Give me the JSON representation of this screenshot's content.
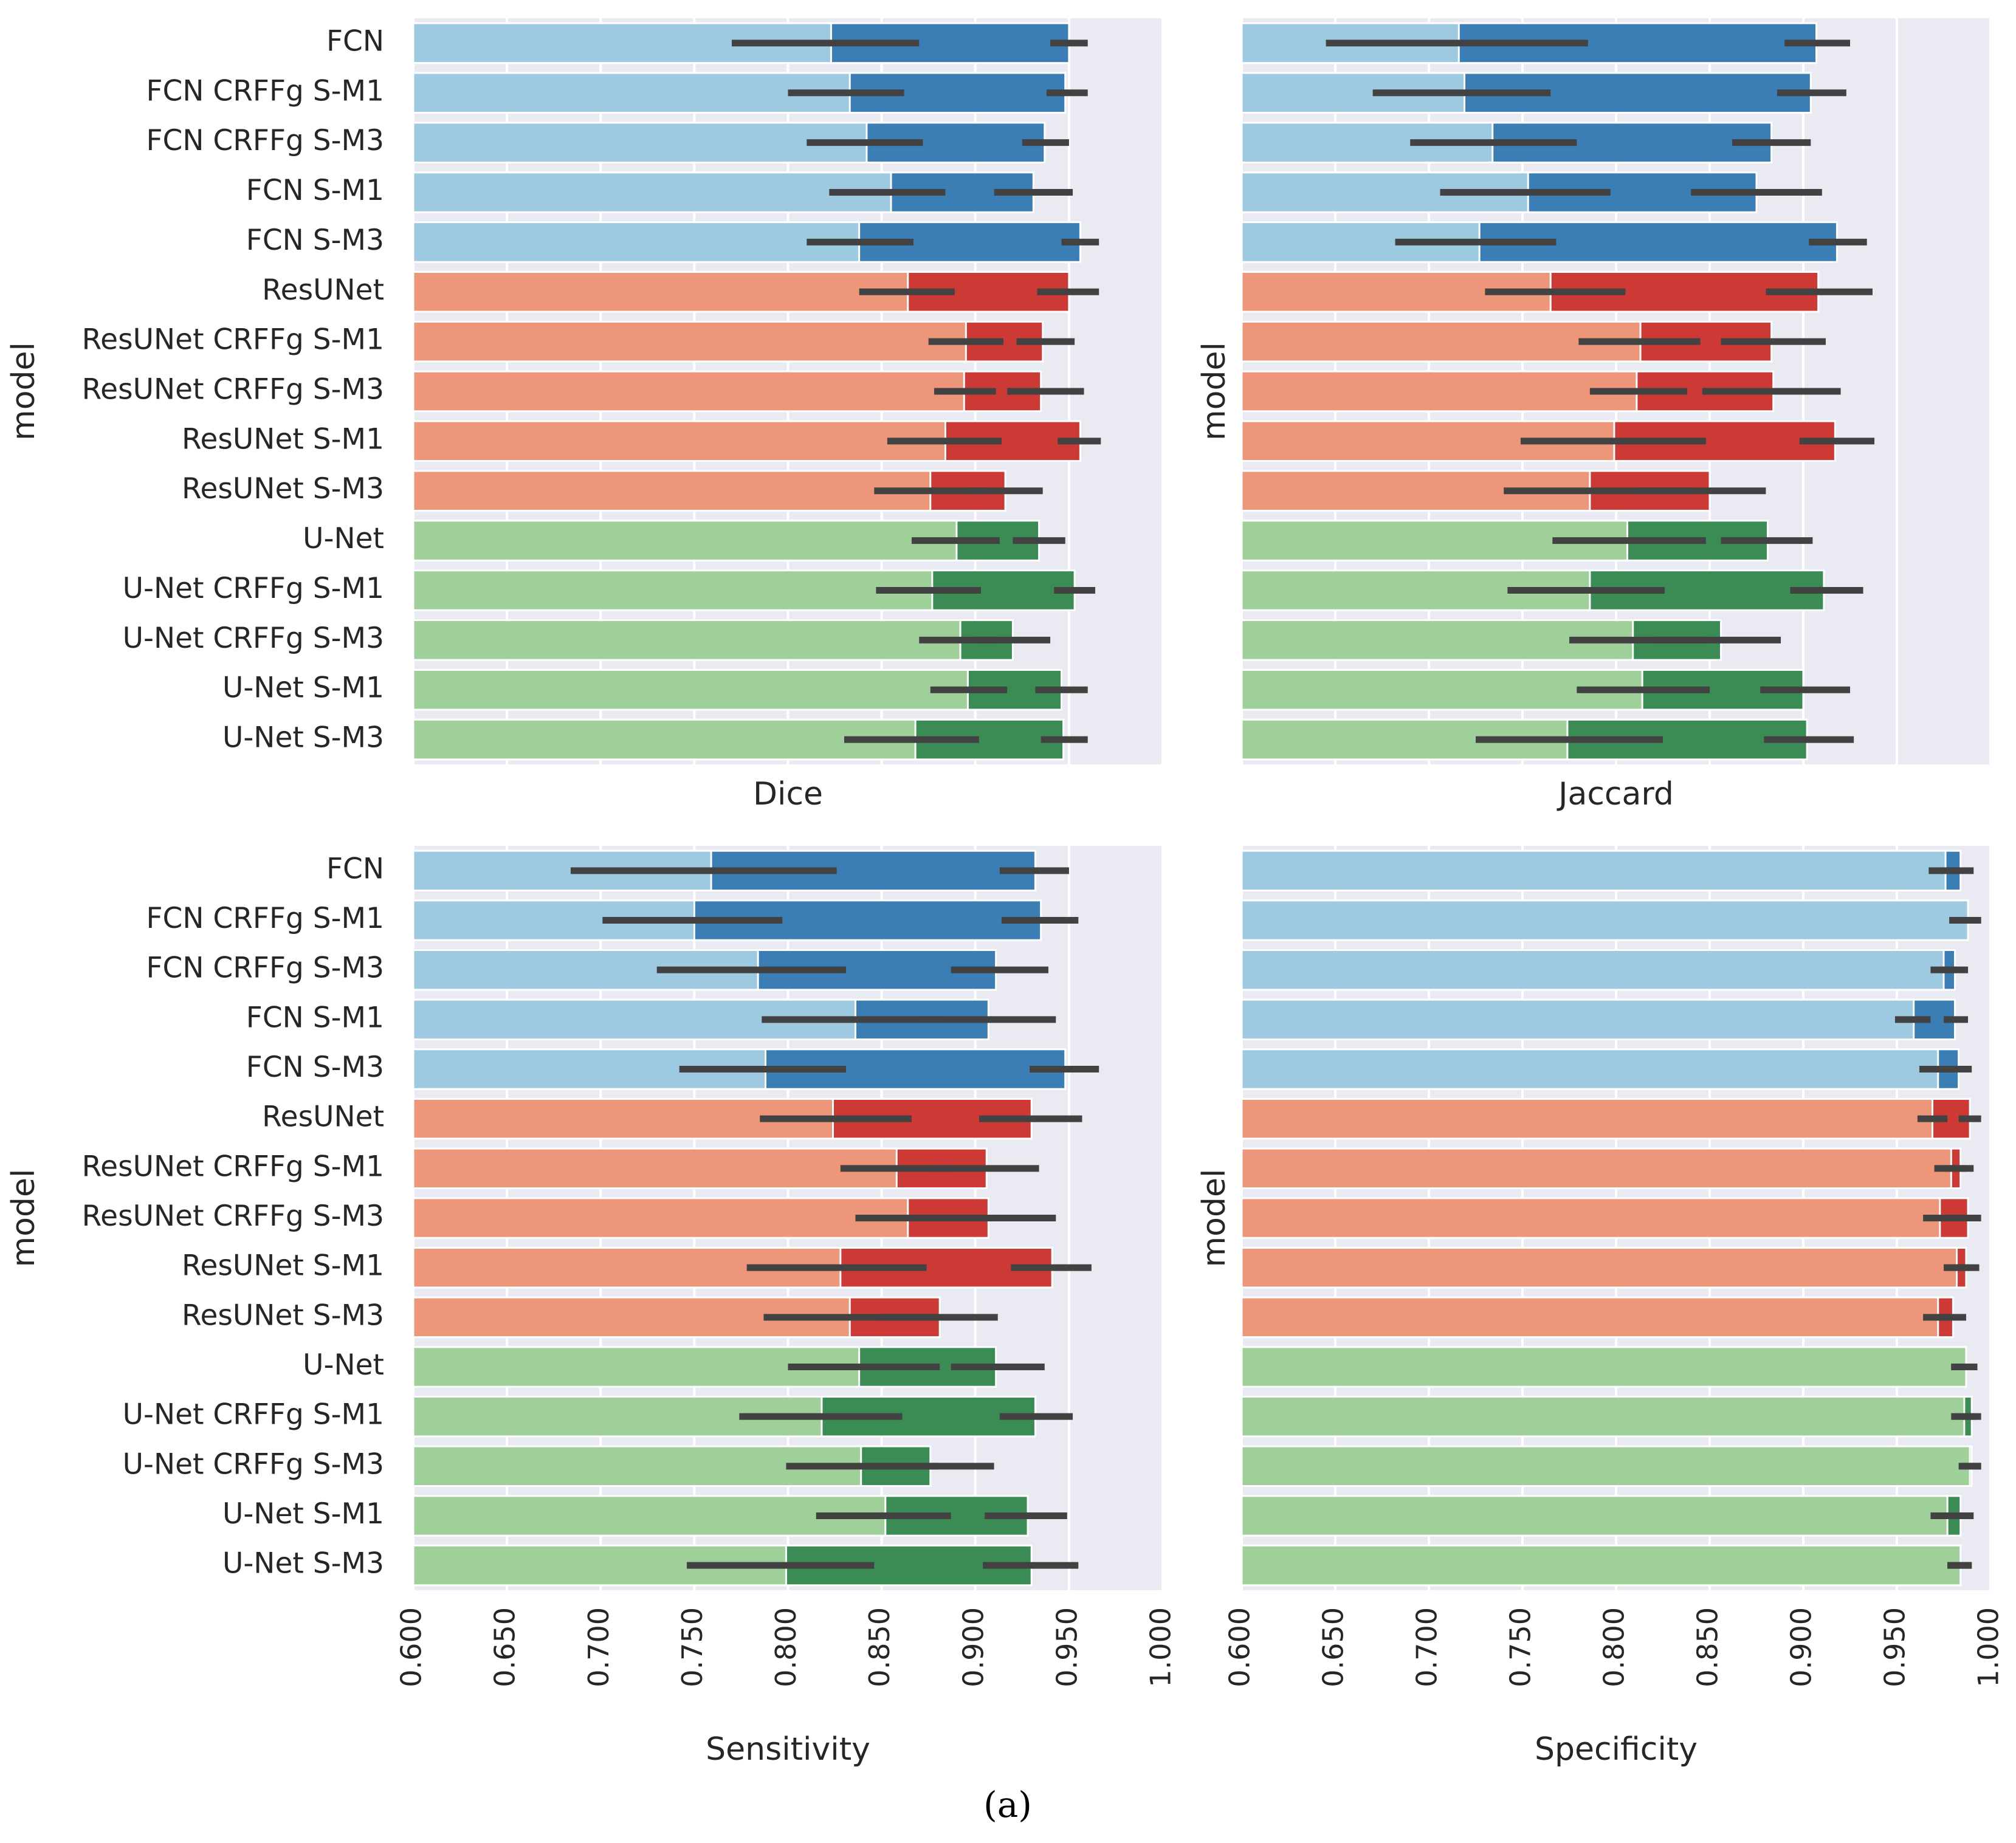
{
  "caption": "(a)",
  "y_axis_label": "model",
  "x_ticks": [
    "0.600",
    "0.650",
    "0.700",
    "0.750",
    "0.800",
    "0.850",
    "0.900",
    "0.950",
    "1.000"
  ],
  "colors": {
    "background": "#eaeaf2",
    "grid": "#ffffff",
    "errorbar": "#424242",
    "FCN": {
      "light": "#9ecae1",
      "dark": "#3b7db5"
    },
    "ResUNet": {
      "light": "#ed967a",
      "dark": "#cd3a35"
    },
    "U-Net": {
      "light": "#9fd09a",
      "dark": "#3b8c54"
    }
  },
  "models": [
    "FCN",
    "FCN CRFFg S-M1",
    "FCN CRFFg S-M3",
    "FCN S-M1",
    "FCN S-M3",
    "ResUNet",
    "ResUNet CRFFg S-M1",
    "ResUNet CRFFg S-M3",
    "ResUNet S-M1",
    "ResUNet S-M3",
    "U-Net",
    "U-Net CRFFg S-M1",
    "U-Net CRFFg S-M3",
    "U-Net S-M1",
    "U-Net S-M3"
  ],
  "groups": [
    "FCN",
    "FCN",
    "FCN",
    "FCN",
    "FCN",
    "ResUNet",
    "ResUNet",
    "ResUNet",
    "ResUNet",
    "ResUNet",
    "U-Net",
    "U-Net",
    "U-Net",
    "U-Net",
    "U-Net"
  ],
  "chart_data": [
    {
      "type": "bar",
      "xlabel": "Dice",
      "ylabel": "model",
      "xlim": [
        0.6,
        1.0
      ],
      "series": [
        {
          "name": "light",
          "values": [
            0.823,
            0.833,
            0.842,
            0.855,
            0.838,
            0.864,
            0.895,
            0.894,
            0.884,
            0.876,
            0.89,
            0.877,
            0.892,
            0.896,
            0.868
          ],
          "err_low": [
            0.77,
            0.8,
            0.81,
            0.822,
            0.81,
            0.838,
            0.875,
            0.878,
            0.853,
            0.846,
            0.866,
            0.847,
            0.87,
            0.876,
            0.83
          ],
          "err_high": [
            0.87,
            0.862,
            0.872,
            0.884,
            0.867,
            0.889,
            0.915,
            0.911,
            0.914,
            0.906,
            0.913,
            0.903,
            0.912,
            0.917,
            0.902
          ]
        },
        {
          "name": "dark",
          "values": [
            0.95,
            0.948,
            0.937,
            0.931,
            0.956,
            0.95,
            0.936,
            0.935,
            0.956,
            0.916,
            0.934,
            0.953,
            0.92,
            0.946,
            0.947
          ],
          "err_low": [
            0.94,
            0.938,
            0.925,
            0.91,
            0.946,
            0.933,
            0.922,
            0.917,
            0.944,
            0.896,
            0.92,
            0.942,
            0.9,
            0.932,
            0.935
          ],
          "err_high": [
            0.96,
            0.96,
            0.95,
            0.952,
            0.966,
            0.966,
            0.953,
            0.958,
            0.967,
            0.936,
            0.948,
            0.964,
            0.94,
            0.96,
            0.96
          ]
        }
      ]
    },
    {
      "type": "bar",
      "xlabel": "Jaccard",
      "ylabel": "model",
      "xlim": [
        0.6,
        1.0
      ],
      "series": [
        {
          "name": "light",
          "values": [
            0.716,
            0.719,
            0.734,
            0.753,
            0.727,
            0.765,
            0.813,
            0.811,
            0.799,
            0.786,
            0.806,
            0.786,
            0.809,
            0.814,
            0.774
          ],
          "err_low": [
            0.645,
            0.67,
            0.69,
            0.706,
            0.682,
            0.73,
            0.78,
            0.786,
            0.749,
            0.74,
            0.766,
            0.742,
            0.775,
            0.779,
            0.725
          ],
          "err_high": [
            0.785,
            0.765,
            0.779,
            0.797,
            0.768,
            0.805,
            0.845,
            0.838,
            0.848,
            0.84,
            0.848,
            0.826,
            0.848,
            0.85,
            0.825
          ]
        },
        {
          "name": "dark",
          "values": [
            0.907,
            0.904,
            0.883,
            0.875,
            0.918,
            0.908,
            0.883,
            0.884,
            0.917,
            0.85,
            0.881,
            0.911,
            0.856,
            0.9,
            0.902
          ],
          "err_low": [
            0.89,
            0.886,
            0.862,
            0.84,
            0.903,
            0.88,
            0.856,
            0.846,
            0.898,
            0.812,
            0.856,
            0.893,
            0.82,
            0.877,
            0.879
          ],
          "err_high": [
            0.925,
            0.923,
            0.904,
            0.91,
            0.934,
            0.937,
            0.912,
            0.92,
            0.938,
            0.88,
            0.905,
            0.932,
            0.888,
            0.925,
            0.927
          ]
        }
      ]
    },
    {
      "type": "bar",
      "xlabel": "Sensitivity",
      "ylabel": "model",
      "xlim": [
        0.6,
        1.0
      ],
      "series": [
        {
          "name": "light",
          "values": [
            0.759,
            0.75,
            0.784,
            0.836,
            0.788,
            0.824,
            0.858,
            0.864,
            0.828,
            0.833,
            0.838,
            0.818,
            0.839,
            0.852,
            0.799
          ],
          "err_low": [
            0.684,
            0.701,
            0.73,
            0.786,
            0.742,
            0.785,
            0.828,
            0.836,
            0.778,
            0.787,
            0.8,
            0.774,
            0.799,
            0.815,
            0.746
          ],
          "err_high": [
            0.826,
            0.797,
            0.831,
            0.884,
            0.831,
            0.866,
            0.887,
            0.891,
            0.874,
            0.88,
            0.881,
            0.861,
            0.88,
            0.887,
            0.846
          ]
        },
        {
          "name": "dark",
          "values": [
            0.932,
            0.935,
            0.911,
            0.907,
            0.948,
            0.93,
            0.906,
            0.907,
            0.941,
            0.881,
            0.911,
            0.932,
            0.876,
            0.928,
            0.93
          ],
          "err_low": [
            0.913,
            0.914,
            0.887,
            0.87,
            0.929,
            0.902,
            0.877,
            0.871,
            0.919,
            0.848,
            0.887,
            0.913,
            0.841,
            0.905,
            0.904
          ],
          "err_high": [
            0.95,
            0.955,
            0.939,
            0.943,
            0.966,
            0.957,
            0.934,
            0.943,
            0.962,
            0.912,
            0.937,
            0.952,
            0.91,
            0.949,
            0.955
          ]
        }
      ]
    },
    {
      "type": "bar",
      "xlabel": "Specificity",
      "ylabel": "model",
      "xlim": [
        0.6,
        1.0
      ],
      "series": [
        {
          "name": "light",
          "values": [
            0.976,
            0.988,
            0.975,
            0.959,
            0.972,
            0.969,
            0.979,
            0.973,
            0.982,
            0.972,
            0.987,
            0.986,
            0.989,
            0.977,
            0.984
          ],
          "err_low": [
            0.967,
            0.978,
            0.968,
            0.949,
            0.962,
            0.961,
            0.97,
            0.964,
            0.975,
            0.964,
            0.979,
            0.979,
            0.983,
            0.968,
            0.977
          ],
          "err_high": [
            0.983,
            0.995,
            0.982,
            0.968,
            0.981,
            0.977,
            0.987,
            0.981,
            0.989,
            0.979,
            0.993,
            0.992,
            0.995,
            0.985,
            0.99
          ]
        },
        {
          "name": "dark",
          "values": [
            0.984,
            0.988,
            0.981,
            0.981,
            0.983,
            0.989,
            0.984,
            0.988,
            0.987,
            0.98,
            0.987,
            0.99,
            0.99,
            0.984,
            0.984
          ],
          "err_low": [
            0.977,
            0.978,
            0.973,
            0.975,
            0.975,
            0.983,
            0.977,
            0.981,
            0.98,
            0.972,
            0.979,
            0.985,
            0.985,
            0.977,
            0.977
          ],
          "err_high": [
            0.991,
            0.995,
            0.988,
            0.988,
            0.99,
            0.995,
            0.991,
            0.995,
            0.994,
            0.987,
            0.993,
            0.995,
            0.995,
            0.991,
            0.99
          ]
        }
      ]
    }
  ]
}
